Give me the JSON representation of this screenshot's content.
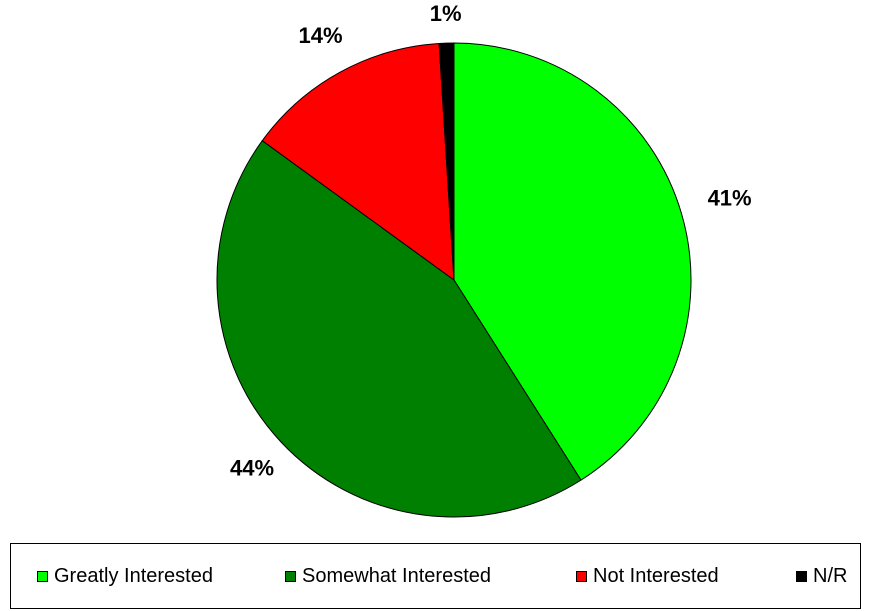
{
  "chart_data": {
    "type": "pie",
    "categories": [
      "Greatly Interested",
      "Somewhat Interested",
      "Not Interested",
      "N/R"
    ],
    "values": [
      41,
      44,
      14,
      1
    ],
    "labels": [
      "41%",
      "44%",
      "14%",
      "1%"
    ],
    "colors": [
      "#00FF00",
      "#008000",
      "#FF0000",
      "#000000"
    ],
    "legend_position": "bottom"
  }
}
